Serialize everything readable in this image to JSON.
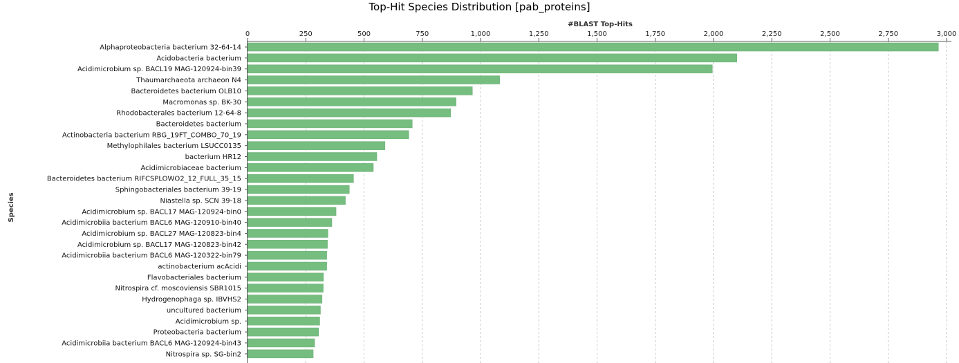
{
  "chart_data": {
    "type": "bar",
    "orientation": "horizontal",
    "title": "Top-Hit Species Distribution [pab_proteins]",
    "xlabel": "#BLAST Top-Hits",
    "ylabel": "Species",
    "xlim": [
      0,
      3000
    ],
    "ticks": [
      "0",
      "250",
      "500",
      "750",
      "1,000",
      "1,250",
      "1,500",
      "1,750",
      "2,000",
      "2,250",
      "2,500",
      "2,750",
      "3,000"
    ],
    "tick_values": [
      0,
      250,
      500,
      750,
      1000,
      1250,
      1500,
      1750,
      2000,
      2250,
      2500,
      2750,
      3000
    ],
    "x_axis_position": "top",
    "grid": "vertical dashed",
    "bar_color": "#76bd80",
    "categories": [
      "Alphaproteobacteria bacterium 32-64-14",
      "Acidobacteria bacterium",
      "Acidimicrobium sp. BACL19 MAG-120924-bin39",
      "Thaumarchaeota archaeon N4",
      "Bacteroidetes bacterium OLB10",
      "Macromonas sp. BK-30",
      "Rhodobacterales bacterium 12-64-8",
      "Bacteroidetes bacterium",
      "Actinobacteria bacterium RBG_19FT_COMBO_70_19",
      "Methylophilales bacterium LSUCC0135",
      "bacterium HR12",
      "Acidimicrobiaceae bacterium",
      "Bacteroidetes bacterium RIFCSPLOWO2_12_FULL_35_15",
      "Sphingobacteriales bacterium 39-19",
      "Niastella sp. SCN 39-18",
      "Acidimicrobium sp. BACL17 MAG-120924-bin0",
      "Acidimicrobiia bacterium BACL6 MAG-120910-bin40",
      "Acidimicrobium sp. BACL27 MAG-120823-bin4",
      "Acidimicrobium sp. BACL17 MAG-120823-bin42",
      "Acidimicrobiia bacterium BACL6 MAG-120322-bin79",
      "actinobacterium acAcidi",
      "Flavobacteriales bacterium",
      "Nitrospira cf. moscoviensis SBR1015",
      "Hydrogenophaga sp. IBVHS2",
      "uncultured bacterium",
      "Acidimicrobium sp.",
      "Proteobacteria bacterium",
      "Acidimicrobiia bacterium BACL6 MAG-120924-bin43",
      "Nitrospira sp. SG-bin2"
    ],
    "values": [
      2965,
      2100,
      1995,
      1082,
      965,
      895,
      872,
      707,
      692,
      590,
      555,
      540,
      455,
      437,
      420,
      380,
      362,
      345,
      343,
      340,
      340,
      326,
      325,
      320,
      313,
      310,
      305,
      288,
      282
    ]
  }
}
